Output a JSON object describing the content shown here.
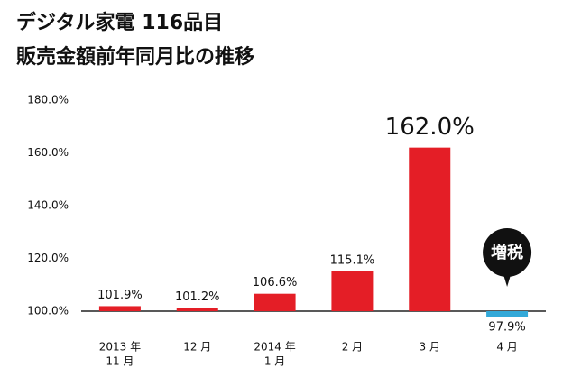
{
  "chart_data": {
    "type": "bar",
    "title": "デジタル家電 116品目",
    "subtitle": "販売金額前年同月比の推移",
    "categories": [
      [
        "2013 年",
        "11 月"
      ],
      [
        "12 月"
      ],
      [
        "2014 年",
        "1 月"
      ],
      [
        "2 月"
      ],
      [
        "3 月"
      ],
      [
        "4 月"
      ]
    ],
    "values": [
      101.9,
      101.2,
      106.6,
      115.1,
      162.0,
      97.9
    ],
    "value_labels": [
      "101.9%",
      "101.2%",
      "106.6%",
      "115.1%",
      "162.0%",
      "97.9%"
    ],
    "colors": [
      "#e41e26",
      "#e41e26",
      "#e41e26",
      "#e41e26",
      "#e41e26",
      "#33a9d9"
    ],
    "annotation": "増税",
    "ylim": [
      100,
      180
    ],
    "yticks": [
      {
        "value": 100,
        "label": "100.0%"
      },
      {
        "value": 120,
        "label": "120.0%"
      },
      {
        "value": 140,
        "label": "140.0%"
      },
      {
        "value": 160,
        "label": "160.0%"
      },
      {
        "value": 180,
        "label": "180.0%"
      }
    ],
    "grid": false
  }
}
